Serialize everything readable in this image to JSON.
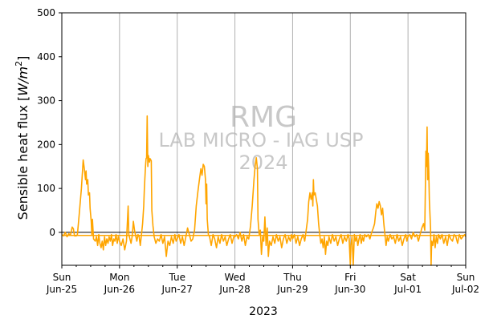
{
  "chart_data": {
    "type": "line",
    "ylabel_text": "Sensible heat flux [",
    "ylabel_unit": "W/m",
    "ylabel_exp": "2",
    "ylabel_close": "]",
    "xlabel": "2023",
    "ylim": [
      -75,
      500
    ],
    "yticks": [
      0,
      100,
      200,
      300,
      400,
      500
    ],
    "xlim_days": [
      0,
      7
    ],
    "x_ticks": [
      {
        "day": 0,
        "line1": "Sun",
        "line2": "Jun-25"
      },
      {
        "day": 1,
        "line1": "Mon",
        "line2": "Jun-26"
      },
      {
        "day": 2,
        "line1": "Tue",
        "line2": "Jun-27"
      },
      {
        "day": 3,
        "line1": "Wed",
        "line2": "Jun-28"
      },
      {
        "day": 4,
        "line1": "Thu",
        "line2": "Jun-29"
      },
      {
        "day": 5,
        "line1": "Fri",
        "line2": "Jun-30"
      },
      {
        "day": 6,
        "line1": "Sat",
        "line2": "Jul-01"
      },
      {
        "day": 7,
        "line1": "Sun",
        "line2": "Jul-02"
      }
    ],
    "grid_days": [
      1,
      2,
      3,
      4,
      5,
      6
    ],
    "zero_line": 0,
    "mean_line": -7,
    "colors": {
      "series": "#ffa500",
      "zero": "#000000",
      "grid": "#b0b0b0",
      "watermark": "#c8c8c8"
    },
    "series": [
      {
        "points": [
          [
            0.0,
            -5
          ],
          [
            0.03,
            -8
          ],
          [
            0.06,
            0
          ],
          [
            0.09,
            -10
          ],
          [
            0.12,
            -3
          ],
          [
            0.15,
            -6
          ],
          [
            0.18,
            12
          ],
          [
            0.2,
            8
          ],
          [
            0.22,
            -8
          ],
          [
            0.25,
            -8
          ],
          [
            0.27,
            -5
          ],
          [
            0.3,
            40
          ],
          [
            0.34,
            100
          ],
          [
            0.37,
            165
          ],
          [
            0.39,
            145
          ],
          [
            0.41,
            120
          ],
          [
            0.42,
            140
          ],
          [
            0.43,
            110
          ],
          [
            0.45,
            120
          ],
          [
            0.46,
            85
          ],
          [
            0.48,
            90
          ],
          [
            0.49,
            55
          ],
          [
            0.5,
            40
          ],
          [
            0.51,
            25
          ],
          [
            0.52,
            -5
          ],
          [
            0.53,
            30
          ],
          [
            0.55,
            -15
          ],
          [
            0.58,
            -20
          ],
          [
            0.6,
            -10
          ],
          [
            0.62,
            -30
          ],
          [
            0.64,
            -5
          ],
          [
            0.66,
            -25
          ],
          [
            0.68,
            -35
          ],
          [
            0.7,
            -20
          ],
          [
            0.72,
            -40
          ],
          [
            0.74,
            -10
          ],
          [
            0.76,
            -30
          ],
          [
            0.78,
            -15
          ],
          [
            0.8,
            -25
          ],
          [
            0.82,
            -10
          ],
          [
            0.84,
            -20
          ],
          [
            0.86,
            -5
          ],
          [
            0.88,
            -30
          ],
          [
            0.9,
            -15
          ],
          [
            0.92,
            -20
          ],
          [
            0.94,
            -5
          ],
          [
            0.96,
            -25
          ],
          [
            0.98,
            -10
          ],
          [
            1.0,
            -20
          ],
          [
            1.03,
            -30
          ],
          [
            1.06,
            -15
          ],
          [
            1.09,
            -40
          ],
          [
            1.12,
            -20
          ],
          [
            1.15,
            60
          ],
          [
            1.16,
            -5
          ],
          [
            1.18,
            -15
          ],
          [
            1.2,
            -25
          ],
          [
            1.22,
            -8
          ],
          [
            1.24,
            25
          ],
          [
            1.26,
            5
          ],
          [
            1.28,
            -8
          ],
          [
            1.3,
            -20
          ],
          [
            1.32,
            -5
          ],
          [
            1.34,
            -10
          ],
          [
            1.36,
            -30
          ],
          [
            1.38,
            -5
          ],
          [
            1.4,
            20
          ],
          [
            1.42,
            60
          ],
          [
            1.43,
            100
          ],
          [
            1.45,
            150
          ],
          [
            1.46,
            168
          ],
          [
            1.47,
            170
          ],
          [
            1.48,
            265
          ],
          [
            1.49,
            150
          ],
          [
            1.5,
            175
          ],
          [
            1.52,
            160
          ],
          [
            1.53,
            168
          ],
          [
            1.55,
            163
          ],
          [
            1.56,
            50
          ],
          [
            1.58,
            15
          ],
          [
            1.6,
            -10
          ],
          [
            1.63,
            -25
          ],
          [
            1.66,
            -15
          ],
          [
            1.69,
            -20
          ],
          [
            1.72,
            -5
          ],
          [
            1.75,
            -25
          ],
          [
            1.78,
            -10
          ],
          [
            1.81,
            -55
          ],
          [
            1.84,
            -20
          ],
          [
            1.87,
            -30
          ],
          [
            1.9,
            -10
          ],
          [
            1.93,
            -25
          ],
          [
            1.96,
            -5
          ],
          [
            1.98,
            -20
          ],
          [
            2.0,
            -15
          ],
          [
            2.03,
            -5
          ],
          [
            2.06,
            -25
          ],
          [
            2.09,
            -10
          ],
          [
            2.12,
            -30
          ],
          [
            2.15,
            -10
          ],
          [
            2.18,
            10
          ],
          [
            2.21,
            -5
          ],
          [
            2.24,
            -20
          ],
          [
            2.27,
            -15
          ],
          [
            2.3,
            5
          ],
          [
            2.33,
            60
          ],
          [
            2.36,
            95
          ],
          [
            2.39,
            125
          ],
          [
            2.41,
            145
          ],
          [
            2.43,
            130
          ],
          [
            2.45,
            155
          ],
          [
            2.47,
            150
          ],
          [
            2.49,
            120
          ],
          [
            2.5,
            65
          ],
          [
            2.51,
            110
          ],
          [
            2.52,
            30
          ],
          [
            2.54,
            -5
          ],
          [
            2.56,
            -10
          ],
          [
            2.59,
            -30
          ],
          [
            2.62,
            -5
          ],
          [
            2.65,
            -15
          ],
          [
            2.68,
            -35
          ],
          [
            2.71,
            -10
          ],
          [
            2.74,
            -25
          ],
          [
            2.77,
            -5
          ],
          [
            2.8,
            -20
          ],
          [
            2.83,
            -10
          ],
          [
            2.86,
            -30
          ],
          [
            2.89,
            -15
          ],
          [
            2.92,
            -5
          ],
          [
            2.95,
            -25
          ],
          [
            2.98,
            -10
          ],
          [
            3.0,
            -10
          ],
          [
            3.03,
            -5
          ],
          [
            3.06,
            -15
          ],
          [
            3.09,
            0
          ],
          [
            3.12,
            -20
          ],
          [
            3.15,
            -5
          ],
          [
            3.18,
            -30
          ],
          [
            3.21,
            -10
          ],
          [
            3.24,
            -15
          ],
          [
            3.27,
            15
          ],
          [
            3.3,
            60
          ],
          [
            3.33,
            120
          ],
          [
            3.35,
            150
          ],
          [
            3.37,
            170
          ],
          [
            3.39,
            145
          ],
          [
            3.4,
            30
          ],
          [
            3.42,
            -5
          ],
          [
            3.44,
            5
          ],
          [
            3.46,
            -50
          ],
          [
            3.48,
            -10
          ],
          [
            3.5,
            -20
          ],
          [
            3.52,
            35
          ],
          [
            3.54,
            -30
          ],
          [
            3.56,
            10
          ],
          [
            3.58,
            -55
          ],
          [
            3.6,
            -20
          ],
          [
            3.63,
            -30
          ],
          [
            3.66,
            -10
          ],
          [
            3.69,
            -25
          ],
          [
            3.72,
            -5
          ],
          [
            3.75,
            -20
          ],
          [
            3.78,
            -10
          ],
          [
            3.81,
            -35
          ],
          [
            3.84,
            -15
          ],
          [
            3.87,
            -5
          ],
          [
            3.9,
            -25
          ],
          [
            3.93,
            -10
          ],
          [
            3.96,
            -20
          ],
          [
            3.98,
            -5
          ],
          [
            4.0,
            -15
          ],
          [
            4.03,
            -5
          ],
          [
            4.06,
            -25
          ],
          [
            4.09,
            -10
          ],
          [
            4.12,
            -30
          ],
          [
            4.15,
            -15
          ],
          [
            4.18,
            -5
          ],
          [
            4.21,
            -20
          ],
          [
            4.24,
            10
          ],
          [
            4.26,
            30
          ],
          [
            4.28,
            70
          ],
          [
            4.3,
            90
          ],
          [
            4.32,
            75
          ],
          [
            4.34,
            90
          ],
          [
            4.35,
            60
          ],
          [
            4.36,
            120
          ],
          [
            4.37,
            85
          ],
          [
            4.39,
            90
          ],
          [
            4.41,
            75
          ],
          [
            4.43,
            60
          ],
          [
            4.45,
            20
          ],
          [
            4.47,
            -5
          ],
          [
            4.49,
            -25
          ],
          [
            4.51,
            -15
          ],
          [
            4.53,
            -35
          ],
          [
            4.55,
            -10
          ],
          [
            4.57,
            -50
          ],
          [
            4.59,
            -20
          ],
          [
            4.61,
            -30
          ],
          [
            4.63,
            -10
          ],
          [
            4.66,
            -25
          ],
          [
            4.69,
            -5
          ],
          [
            4.72,
            -20
          ],
          [
            4.75,
            -10
          ],
          [
            4.78,
            -30
          ],
          [
            4.81,
            -15
          ],
          [
            4.84,
            -5
          ],
          [
            4.87,
            -25
          ],
          [
            4.9,
            -10
          ],
          [
            4.93,
            -20
          ],
          [
            4.96,
            -5
          ],
          [
            4.98,
            -15
          ],
          [
            5.0,
            -75
          ],
          [
            5.01,
            -30
          ],
          [
            5.03,
            -10
          ],
          [
            5.05,
            -75
          ],
          [
            5.07,
            -5
          ],
          [
            5.09,
            -20
          ],
          [
            5.11,
            -10
          ],
          [
            5.13,
            -30
          ],
          [
            5.15,
            -15
          ],
          [
            5.17,
            -5
          ],
          [
            5.19,
            -25
          ],
          [
            5.21,
            -10
          ],
          [
            5.23,
            -20
          ],
          [
            5.25,
            -5
          ],
          [
            5.28,
            -10
          ],
          [
            5.31,
            -5
          ],
          [
            5.34,
            -15
          ],
          [
            5.37,
            0
          ],
          [
            5.4,
            10
          ],
          [
            5.42,
            20
          ],
          [
            5.44,
            45
          ],
          [
            5.46,
            65
          ],
          [
            5.48,
            55
          ],
          [
            5.5,
            70
          ],
          [
            5.52,
            60
          ],
          [
            5.54,
            40
          ],
          [
            5.56,
            55
          ],
          [
            5.58,
            20
          ],
          [
            5.6,
            -5
          ],
          [
            5.62,
            -30
          ],
          [
            5.64,
            -10
          ],
          [
            5.66,
            -20
          ],
          [
            5.69,
            -5
          ],
          [
            5.72,
            -15
          ],
          [
            5.75,
            -10
          ],
          [
            5.78,
            -25
          ],
          [
            5.81,
            -5
          ],
          [
            5.84,
            -20
          ],
          [
            5.87,
            -10
          ],
          [
            5.9,
            -30
          ],
          [
            5.93,
            -15
          ],
          [
            5.96,
            -5
          ],
          [
            5.98,
            -20
          ],
          [
            6.0,
            -10
          ],
          [
            6.03,
            -5
          ],
          [
            6.06,
            -15
          ],
          [
            6.09,
            0
          ],
          [
            6.12,
            -10
          ],
          [
            6.15,
            -5
          ],
          [
            6.18,
            -20
          ],
          [
            6.21,
            -5
          ],
          [
            6.24,
            10
          ],
          [
            6.27,
            20
          ],
          [
            6.29,
            5
          ],
          [
            6.31,
            185
          ],
          [
            6.32,
            150
          ],
          [
            6.33,
            240
          ],
          [
            6.34,
            120
          ],
          [
            6.35,
            180
          ],
          [
            6.36,
            140
          ],
          [
            6.37,
            75
          ],
          [
            6.39,
            10
          ],
          [
            6.4,
            -75
          ],
          [
            6.41,
            -20
          ],
          [
            6.43,
            -30
          ],
          [
            6.45,
            -5
          ],
          [
            6.47,
            -35
          ],
          [
            6.49,
            -10
          ],
          [
            6.51,
            -25
          ],
          [
            6.53,
            -5
          ],
          [
            6.56,
            -15
          ],
          [
            6.59,
            -5
          ],
          [
            6.62,
            -25
          ],
          [
            6.65,
            -10
          ],
          [
            6.68,
            -30
          ],
          [
            6.71,
            -5
          ],
          [
            6.74,
            -15
          ],
          [
            6.77,
            -20
          ],
          [
            6.8,
            -5
          ],
          [
            6.83,
            -10
          ],
          [
            6.86,
            -25
          ],
          [
            6.89,
            -5
          ],
          [
            6.92,
            -15
          ],
          [
            6.95,
            -10
          ],
          [
            6.98,
            -5
          ],
          [
            7.0,
            -10
          ]
        ]
      }
    ],
    "watermark": {
      "line1": "RMG",
      "line2": "LAB MICRO - IAG USP",
      "line3": "2024"
    }
  }
}
